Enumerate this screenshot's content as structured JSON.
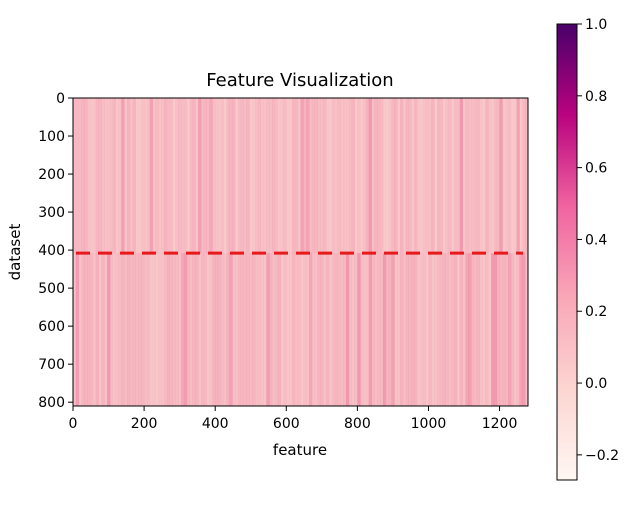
{
  "chart_data": {
    "type": "heatmap",
    "title": "Feature Visualization",
    "xlabel": "feature",
    "ylabel": "dataset",
    "x_range": [
      0,
      1280
    ],
    "y_range": [
      0,
      810
    ],
    "y_inverted": true,
    "xticks": [
      0,
      200,
      400,
      600,
      800,
      1000,
      1200
    ],
    "yticks": [
      0,
      100,
      200,
      300,
      400,
      500,
      600,
      700,
      800
    ],
    "colormap": "RdPu",
    "colorbar": {
      "range": [
        -0.27,
        1.0
      ],
      "ticks": [
        1.0,
        0.8,
        0.6,
        0.4,
        0.2,
        0.0,
        -0.2
      ],
      "tick_labels": [
        "1.0",
        "0.8",
        "0.6",
        "0.4",
        "0.2",
        "0.0",
        "−0.2"
      ]
    },
    "typical_value": 0.15,
    "value_description_visible": false,
    "hline": {
      "y": 408,
      "style": "dashed",
      "color": "#e8191b"
    },
    "grid": false
  }
}
